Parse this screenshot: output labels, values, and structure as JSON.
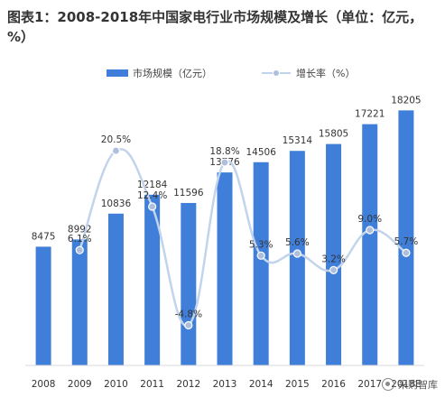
{
  "title": "图表1：2008-2018年中国家电行业市场规模及增长（单位：亿元，%）",
  "watermark": "采购智库",
  "watermark_icon": "wechat-icon",
  "colors": {
    "bar": "#3f7fd9",
    "line": "#c2d3ec",
    "marker": "#aebfdd",
    "text": "#333333"
  },
  "chart_data": {
    "type": "bar",
    "categories": [
      "2008",
      "2009",
      "2010",
      "2011",
      "2012",
      "2013",
      "2014",
      "2015",
      "2016",
      "2017",
      "2018E"
    ],
    "series": [
      {
        "name": "市场规模（亿元）",
        "type": "bar",
        "values": [
          8475,
          8992,
          10836,
          12184,
          11596,
          13776,
          14506,
          15314,
          15805,
          17221,
          18205
        ],
        "labels": [
          "8475",
          "8992",
          "10836",
          "12184",
          "11596",
          "13776",
          "14506",
          "15314",
          "15805",
          "17221",
          "18205"
        ]
      },
      {
        "name": "增长率（%）",
        "type": "line",
        "values": [
          null,
          6.1,
          20.5,
          12.4,
          -4.8,
          18.8,
          5.3,
          5.6,
          3.2,
          9.0,
          5.7
        ],
        "labels": [
          "",
          "6.1%",
          "20.5%",
          "12.4%",
          "-4.8%",
          "18.8%",
          "5.3%",
          "5.6%",
          "3.2%",
          "9.0%",
          "5.7%"
        ]
      }
    ],
    "ylim": [
      0,
      19000
    ],
    "y2lim": [
      -8,
      26
    ],
    "legend": "top-center"
  }
}
